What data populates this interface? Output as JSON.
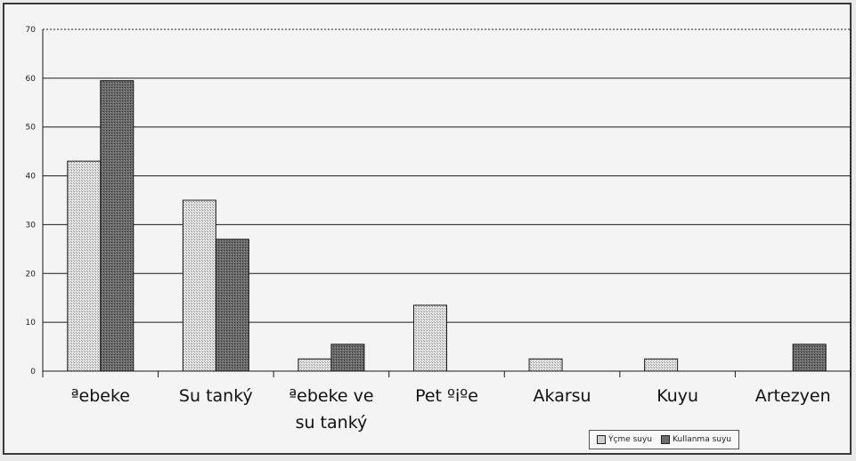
{
  "chart_data": {
    "type": "bar",
    "categories": [
      "ªebeke",
      "Su tanký",
      "ªebeke ve su tanký",
      "Pet ºiºe",
      "Akarsu",
      "Kuyu",
      "Artezyen"
    ],
    "category_lines": [
      [
        "ªebeke"
      ],
      [
        "Su tanký"
      ],
      [
        "ªebeke ve",
        "su tanký"
      ],
      [
        "Pet ºiºe"
      ],
      [
        "Akarsu"
      ],
      [
        "Kuyu"
      ],
      [
        "Artezyen"
      ]
    ],
    "series": [
      {
        "name": "Ýçme suyu",
        "values": [
          43,
          35,
          2.5,
          13.5,
          2.5,
          2.5,
          0
        ],
        "color": "#cfcfcf"
      },
      {
        "name": "Kullanma suyu",
        "values": [
          59.5,
          27,
          5.5,
          0,
          0,
          0,
          5.5
        ],
        "color": "#6b6b6b"
      }
    ],
    "ylim": [
      0,
      70
    ],
    "yticks": [
      0,
      10,
      20,
      30,
      40,
      50,
      60,
      70
    ],
    "grid": true,
    "legend_position": "bottom-right"
  }
}
